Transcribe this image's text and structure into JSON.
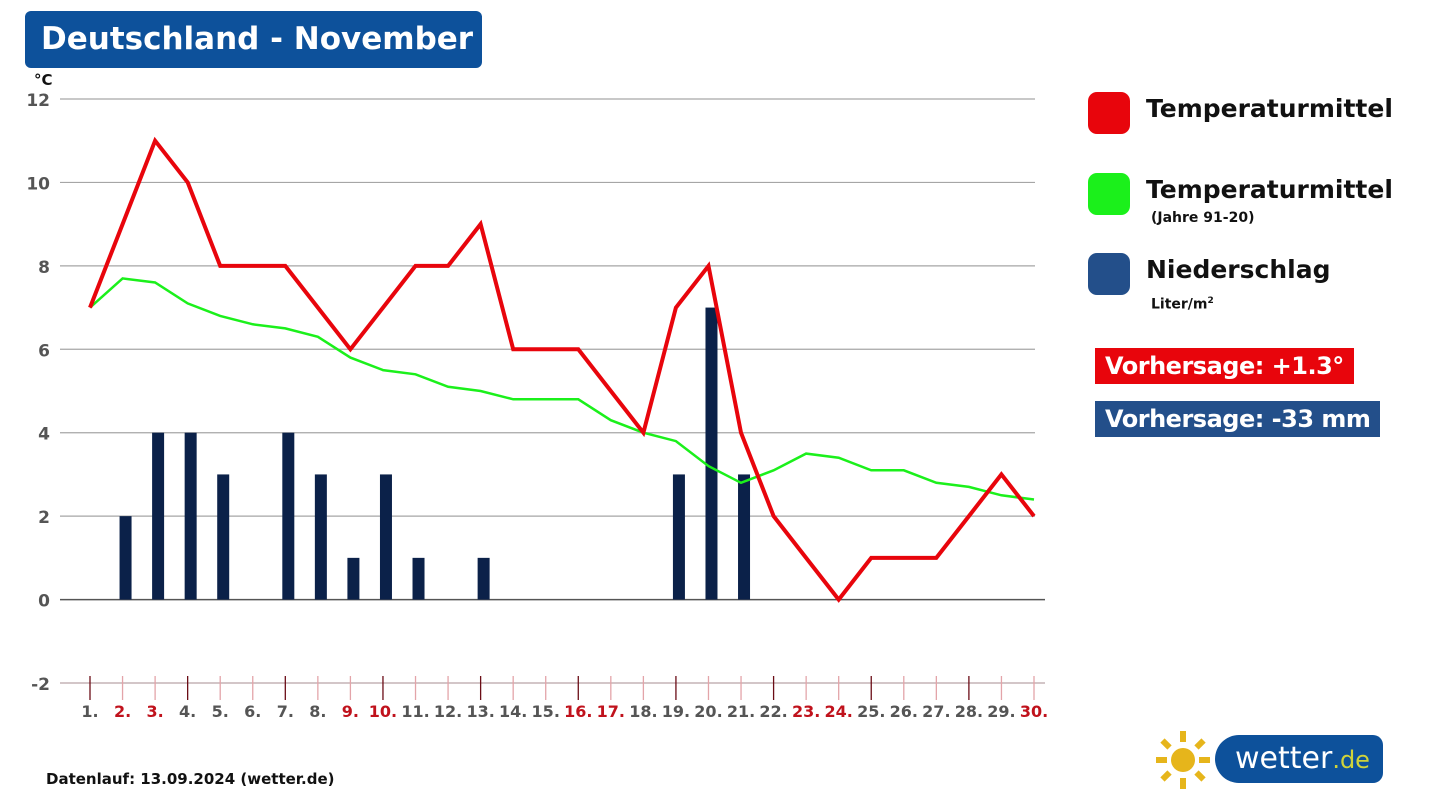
{
  "header": {
    "title": "Deutschland - November"
  },
  "axis": {
    "unit": "°C"
  },
  "legend": {
    "items": [
      {
        "label": "Temperaturmittel",
        "sub": "",
        "color": "#e8050c"
      },
      {
        "label": "Temperaturmittel",
        "sub": "(Jahre 91-20)",
        "color": "#1bf01b"
      },
      {
        "label": "Niederschlag",
        "sub": "Liter/m",
        "sub_sup": "2",
        "color": "#234f8a"
      }
    ]
  },
  "forecast": {
    "temperature": "Vorhersage: +1.3°",
    "precipitation": "Vorhersage: -33 mm"
  },
  "footer": {
    "source": "Datenlauf: 13.09.2024 (wetter.de)"
  },
  "logo": {
    "name": "wetter",
    "tld": ".de"
  },
  "colors": {
    "title_bg": "#0d519b",
    "red": "#e8050c",
    "green": "#1bf01b",
    "bar": "#0b2149",
    "weekend_label": "#c0121c",
    "label": "#555555",
    "grid": "#a6a6a6"
  },
  "chart_data": {
    "type": "line",
    "title": "Deutschland - November",
    "xlabel": "",
    "ylabel": "°C",
    "ylim": [
      -2,
      12
    ],
    "yticks": [
      -2,
      0,
      2,
      4,
      6,
      8,
      10,
      12
    ],
    "grid": true,
    "legend_position": "right",
    "categories": [
      "1.",
      "2.",
      "3.",
      "4.",
      "5.",
      "6.",
      "7.",
      "8.",
      "9.",
      "10.",
      "11.",
      "12.",
      "13.",
      "14.",
      "15.",
      "16.",
      "17.",
      "18.",
      "19.",
      "20.",
      "21.",
      "22.",
      "23.",
      "24.",
      "25.",
      "26.",
      "27.",
      "28.",
      "29.",
      "30."
    ],
    "highlighted_categories": [
      "2.",
      "3.",
      "9.",
      "10.",
      "16.",
      "17.",
      "23.",
      "24.",
      "30."
    ],
    "series": [
      {
        "name": "Temperaturmittel",
        "type": "line",
        "color": "#e8050c",
        "values": [
          7,
          9,
          11,
          10,
          8,
          8,
          8,
          7,
          6,
          7,
          8,
          8,
          9,
          6,
          6,
          6,
          5,
          4,
          7,
          8,
          4,
          2,
          1,
          0,
          1,
          1,
          1,
          2,
          3,
          2
        ]
      },
      {
        "name": "Temperaturmittel (Jahre 91-20)",
        "type": "line",
        "color": "#1bf01b",
        "values": [
          7.0,
          7.7,
          7.6,
          7.1,
          6.8,
          6.6,
          6.5,
          6.3,
          5.8,
          5.5,
          5.4,
          5.1,
          5.0,
          4.8,
          4.8,
          4.8,
          4.3,
          4.0,
          3.8,
          3.2,
          2.8,
          3.1,
          3.5,
          3.4,
          3.1,
          3.1,
          2.8,
          2.7,
          2.5,
          2.4
        ]
      },
      {
        "name": "Niederschlag Liter/m²",
        "type": "bar",
        "color": "#0b2149",
        "values": [
          0,
          2,
          4,
          4,
          3,
          0,
          4,
          3,
          1,
          3,
          1,
          0,
          1,
          0,
          0,
          0,
          0,
          0,
          3,
          7,
          3,
          0,
          0,
          0,
          0,
          0,
          0,
          0,
          0,
          0
        ]
      }
    ],
    "annotations": [
      "Vorhersage: +1.3°",
      "Vorhersage: -33 mm"
    ]
  }
}
